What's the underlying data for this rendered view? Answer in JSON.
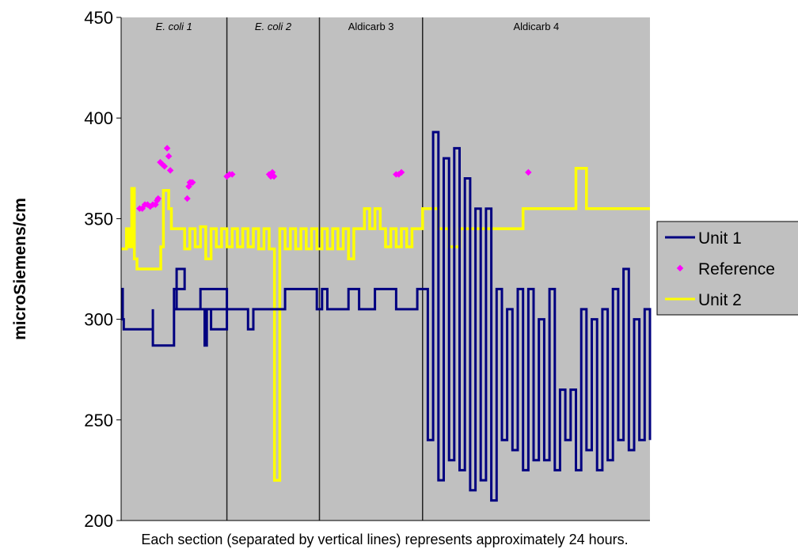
{
  "chart_data": {
    "type": "line",
    "ylabel": "microSiemens/cm",
    "xlabel": "Each section (separated by vertical lines) represents approximately 24 hours.",
    "ylim": [
      200,
      450
    ],
    "yticks": [
      200,
      250,
      300,
      350,
      400,
      450
    ],
    "grid": false,
    "legend_position": "right",
    "plot_background": "#c0c0c0",
    "sections": [
      {
        "label": "E. coli 1",
        "italic": true
      },
      {
        "label": "E. coli 2",
        "italic": true
      },
      {
        "label": "Aldicarb 3",
        "italic": false
      },
      {
        "label": "Aldicarb 4",
        "italic": false
      }
    ],
    "section_boundaries": [
      0,
      0.2,
      0.375,
      0.57,
      1.0
    ],
    "series": [
      {
        "name": "Unit 1",
        "color": "#000080",
        "style": "line",
        "x": [
          0.0,
          0.003,
          0.005,
          0.03,
          0.06,
          0.06,
          0.1,
          0.1,
          0.105,
          0.12,
          0.1,
          0.13,
          0.155,
          0.158,
          0.162,
          0.165,
          0.17,
          0.19,
          0.2,
          0.15,
          0.18,
          0.19,
          0.2,
          0.2,
          0.23,
          0.24,
          0.25,
          0.29,
          0.3,
          0.31,
          0.34,
          0.37,
          0.38,
          0.39,
          0.43,
          0.45,
          0.48,
          0.52,
          0.55,
          0.56,
          0.57,
          0.58,
          0.59,
          0.6,
          0.61,
          0.62,
          0.63,
          0.64,
          0.65,
          0.66,
          0.67,
          0.68,
          0.69,
          0.7,
          0.71,
          0.72,
          0.73,
          0.74,
          0.75,
          0.76,
          0.77,
          0.78,
          0.79,
          0.8,
          0.81,
          0.82,
          0.83,
          0.84,
          0.85,
          0.86,
          0.87,
          0.88,
          0.89,
          0.9,
          0.91,
          0.92,
          0.93,
          0.94,
          0.95,
          0.96,
          0.97,
          0.98,
          0.99,
          1.0
        ],
        "y": [
          315,
          300,
          295,
          295,
          305,
          287,
          305,
          305,
          325,
          315,
          305,
          305,
          305,
          287,
          305,
          305,
          295,
          295,
          315,
          305,
          305,
          305,
          305,
          305,
          305,
          295,
          305,
          305,
          305,
          315,
          315,
          305,
          315,
          305,
          315,
          305,
          315,
          305,
          305,
          315,
          315,
          240,
          393,
          220,
          380,
          230,
          385,
          225,
          370,
          215,
          355,
          220,
          355,
          210,
          315,
          240,
          305,
          235,
          315,
          225,
          315,
          230,
          300,
          230,
          315,
          225,
          265,
          240,
          265,
          225,
          305,
          235,
          300,
          225,
          305,
          230,
          315,
          240,
          325,
          235,
          300,
          240,
          305,
          240
        ]
      },
      {
        "name": "Reference",
        "color": "#ff00ff",
        "style": "markers",
        "x": [
          0.035,
          0.04,
          0.045,
          0.05,
          0.055,
          0.06,
          0.065,
          0.068,
          0.07,
          0.074,
          0.078,
          0.082,
          0.087,
          0.09,
          0.093,
          0.125,
          0.128,
          0.13,
          0.132,
          0.135,
          0.2,
          0.205,
          0.21,
          0.28,
          0.283,
          0.286,
          0.289,
          0.52,
          0.525,
          0.53,
          0.77
        ],
        "y": [
          355,
          355,
          357,
          357,
          356,
          357,
          357,
          359,
          360,
          378,
          377,
          376,
          385,
          381,
          374,
          360,
          366,
          368,
          368,
          368,
          371,
          372,
          372,
          372,
          371,
          373,
          371,
          372,
          372,
          373,
          373
        ]
      },
      {
        "name": "Unit 2",
        "color": "#ffff00",
        "style": "line",
        "x": [
          0.0,
          0.01,
          0.015,
          0.02,
          0.025,
          0.03,
          0.04,
          0.06,
          0.07,
          0.075,
          0.08,
          0.09,
          0.095,
          0.1,
          0.12,
          0.13,
          0.14,
          0.15,
          0.16,
          0.17,
          0.18,
          0.19,
          0.2,
          0.21,
          0.22,
          0.23,
          0.24,
          0.25,
          0.26,
          0.27,
          0.28,
          0.29,
          0.3,
          0.31,
          0.32,
          0.33,
          0.34,
          0.35,
          0.36,
          0.37,
          0.38,
          0.39,
          0.4,
          0.41,
          0.42,
          0.43,
          0.44,
          0.45,
          0.46,
          0.47,
          0.48,
          0.49,
          0.5,
          0.51,
          0.52,
          0.53,
          0.54,
          0.55,
          0.56,
          0.57,
          0.58,
          0.6,
          0.62,
          0.64,
          0.66,
          0.68,
          0.7,
          0.72,
          0.74,
          0.76,
          0.78,
          0.8,
          0.82,
          0.84,
          0.86,
          0.88,
          0.9,
          0.92,
          0.94,
          0.96,
          0.98,
          1.0
        ],
        "y": [
          335,
          345,
          336,
          365,
          330,
          325,
          325,
          325,
          325,
          336,
          364,
          355,
          345,
          345,
          335,
          345,
          336,
          346,
          330,
          345,
          336,
          345,
          336,
          345,
          336,
          345,
          336,
          345,
          335,
          345,
          335,
          220,
          345,
          335,
          345,
          335,
          345,
          335,
          345,
          335,
          345,
          335,
          345,
          335,
          345,
          330,
          345,
          345,
          355,
          345,
          355,
          345,
          336,
          345,
          336,
          345,
          336,
          345,
          345,
          355,
          355,
          345,
          336,
          345,
          345,
          345,
          345,
          345,
          345,
          355,
          355,
          355,
          355,
          355,
          375,
          355,
          355,
          355,
          355,
          355,
          355,
          355
        ]
      }
    ]
  }
}
